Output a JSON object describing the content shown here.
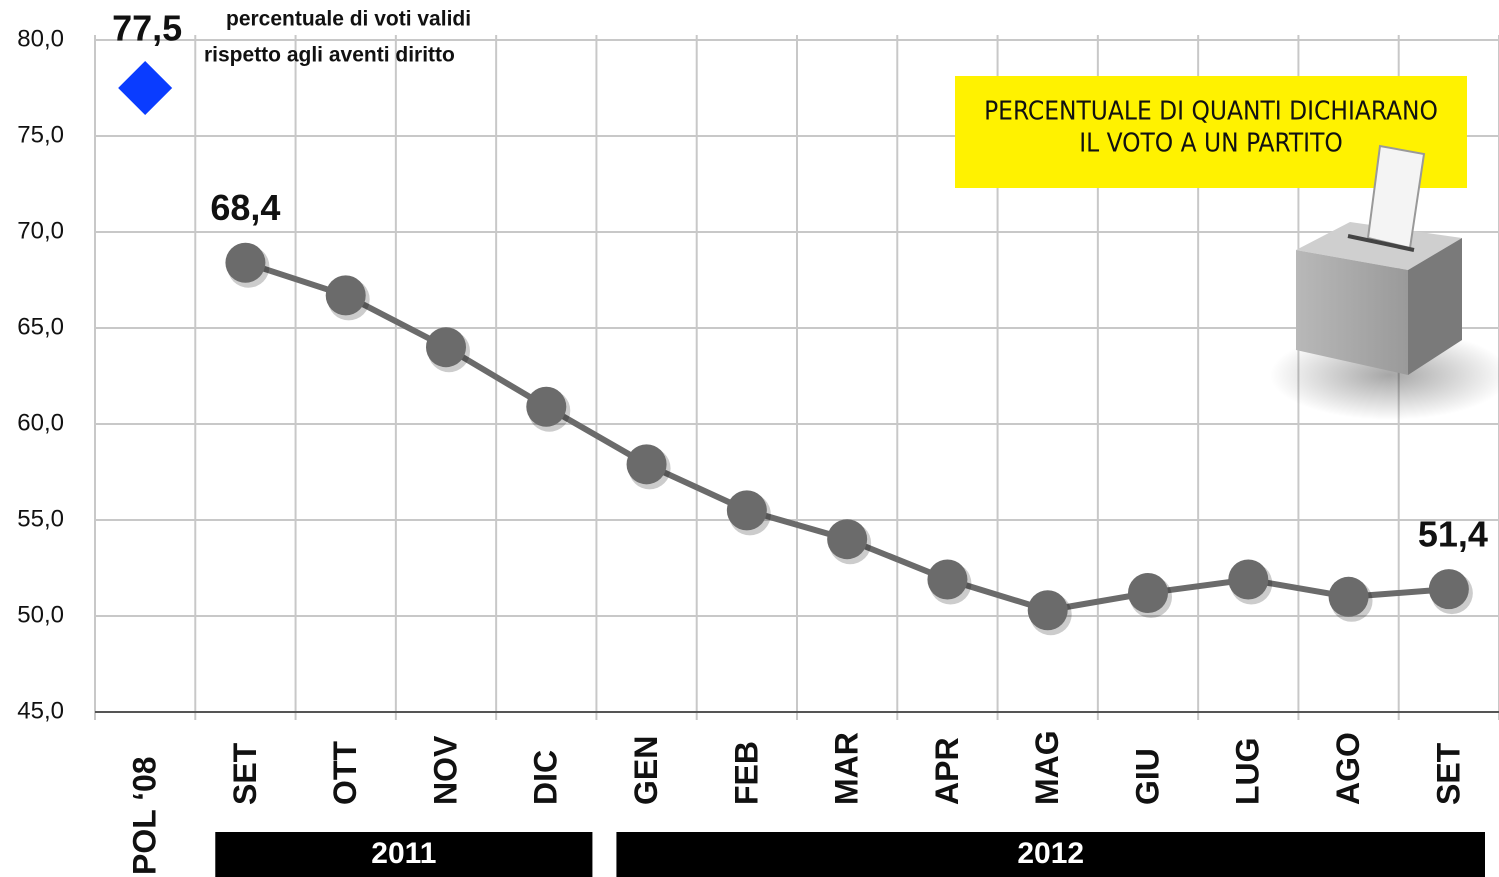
{
  "chart_data": {
    "type": "line",
    "annotation": [
      "percentuale di voti validi",
      "rispetto agli aventi diritto"
    ],
    "legend_box": [
      "PERCENTUALE DI QUANTI DICHIARANO",
      "IL VOTO A UN PARTITO"
    ],
    "legend_color": "#fff200",
    "categories": [
      "POL ‘08",
      "SET",
      "OTT",
      "NOV",
      "DIC",
      "GEN",
      "FEB",
      "MAR",
      "APR",
      "MAG",
      "GIU",
      "LUG",
      "AGO",
      "SET"
    ],
    "years": [
      null,
      "2011",
      "2011",
      "2011",
      "2011",
      "2012",
      "2012",
      "2012",
      "2012",
      "2012",
      "2012",
      "2012",
      "2012",
      "2012"
    ],
    "series": [
      {
        "color": "#0a3cff",
        "marker": "diamond",
        "values": [
          77.5,
          null,
          null,
          null,
          null,
          null,
          null,
          null,
          null,
          null,
          null,
          null,
          null,
          null
        ],
        "value_labels": [
          "77,5",
          null,
          null,
          null,
          null,
          null,
          null,
          null,
          null,
          null,
          null,
          null,
          null,
          null
        ]
      },
      {
        "color": "#6b6b6b",
        "marker": "circle",
        "values": [
          null,
          68.4,
          66.7,
          64.0,
          60.9,
          57.9,
          55.5,
          54.0,
          51.9,
          50.3,
          51.2,
          51.9,
          51.0,
          51.4
        ],
        "value_labels": [
          null,
          "68,4",
          null,
          null,
          null,
          null,
          null,
          null,
          null,
          null,
          null,
          null,
          null,
          "51,4"
        ]
      }
    ],
    "ylim": [
      45,
      80
    ],
    "yticks": [
      {
        "value": 45,
        "label": "45,0"
      },
      {
        "value": 50,
        "label": "50,0"
      },
      {
        "value": 55,
        "label": "55,0"
      },
      {
        "value": 60,
        "label": "60,0"
      },
      {
        "value": 65,
        "label": "65,0"
      },
      {
        "value": 70,
        "label": "70,0"
      },
      {
        "value": 75,
        "label": "75,0"
      },
      {
        "value": 80,
        "label": "80,0"
      }
    ],
    "grid": true
  }
}
